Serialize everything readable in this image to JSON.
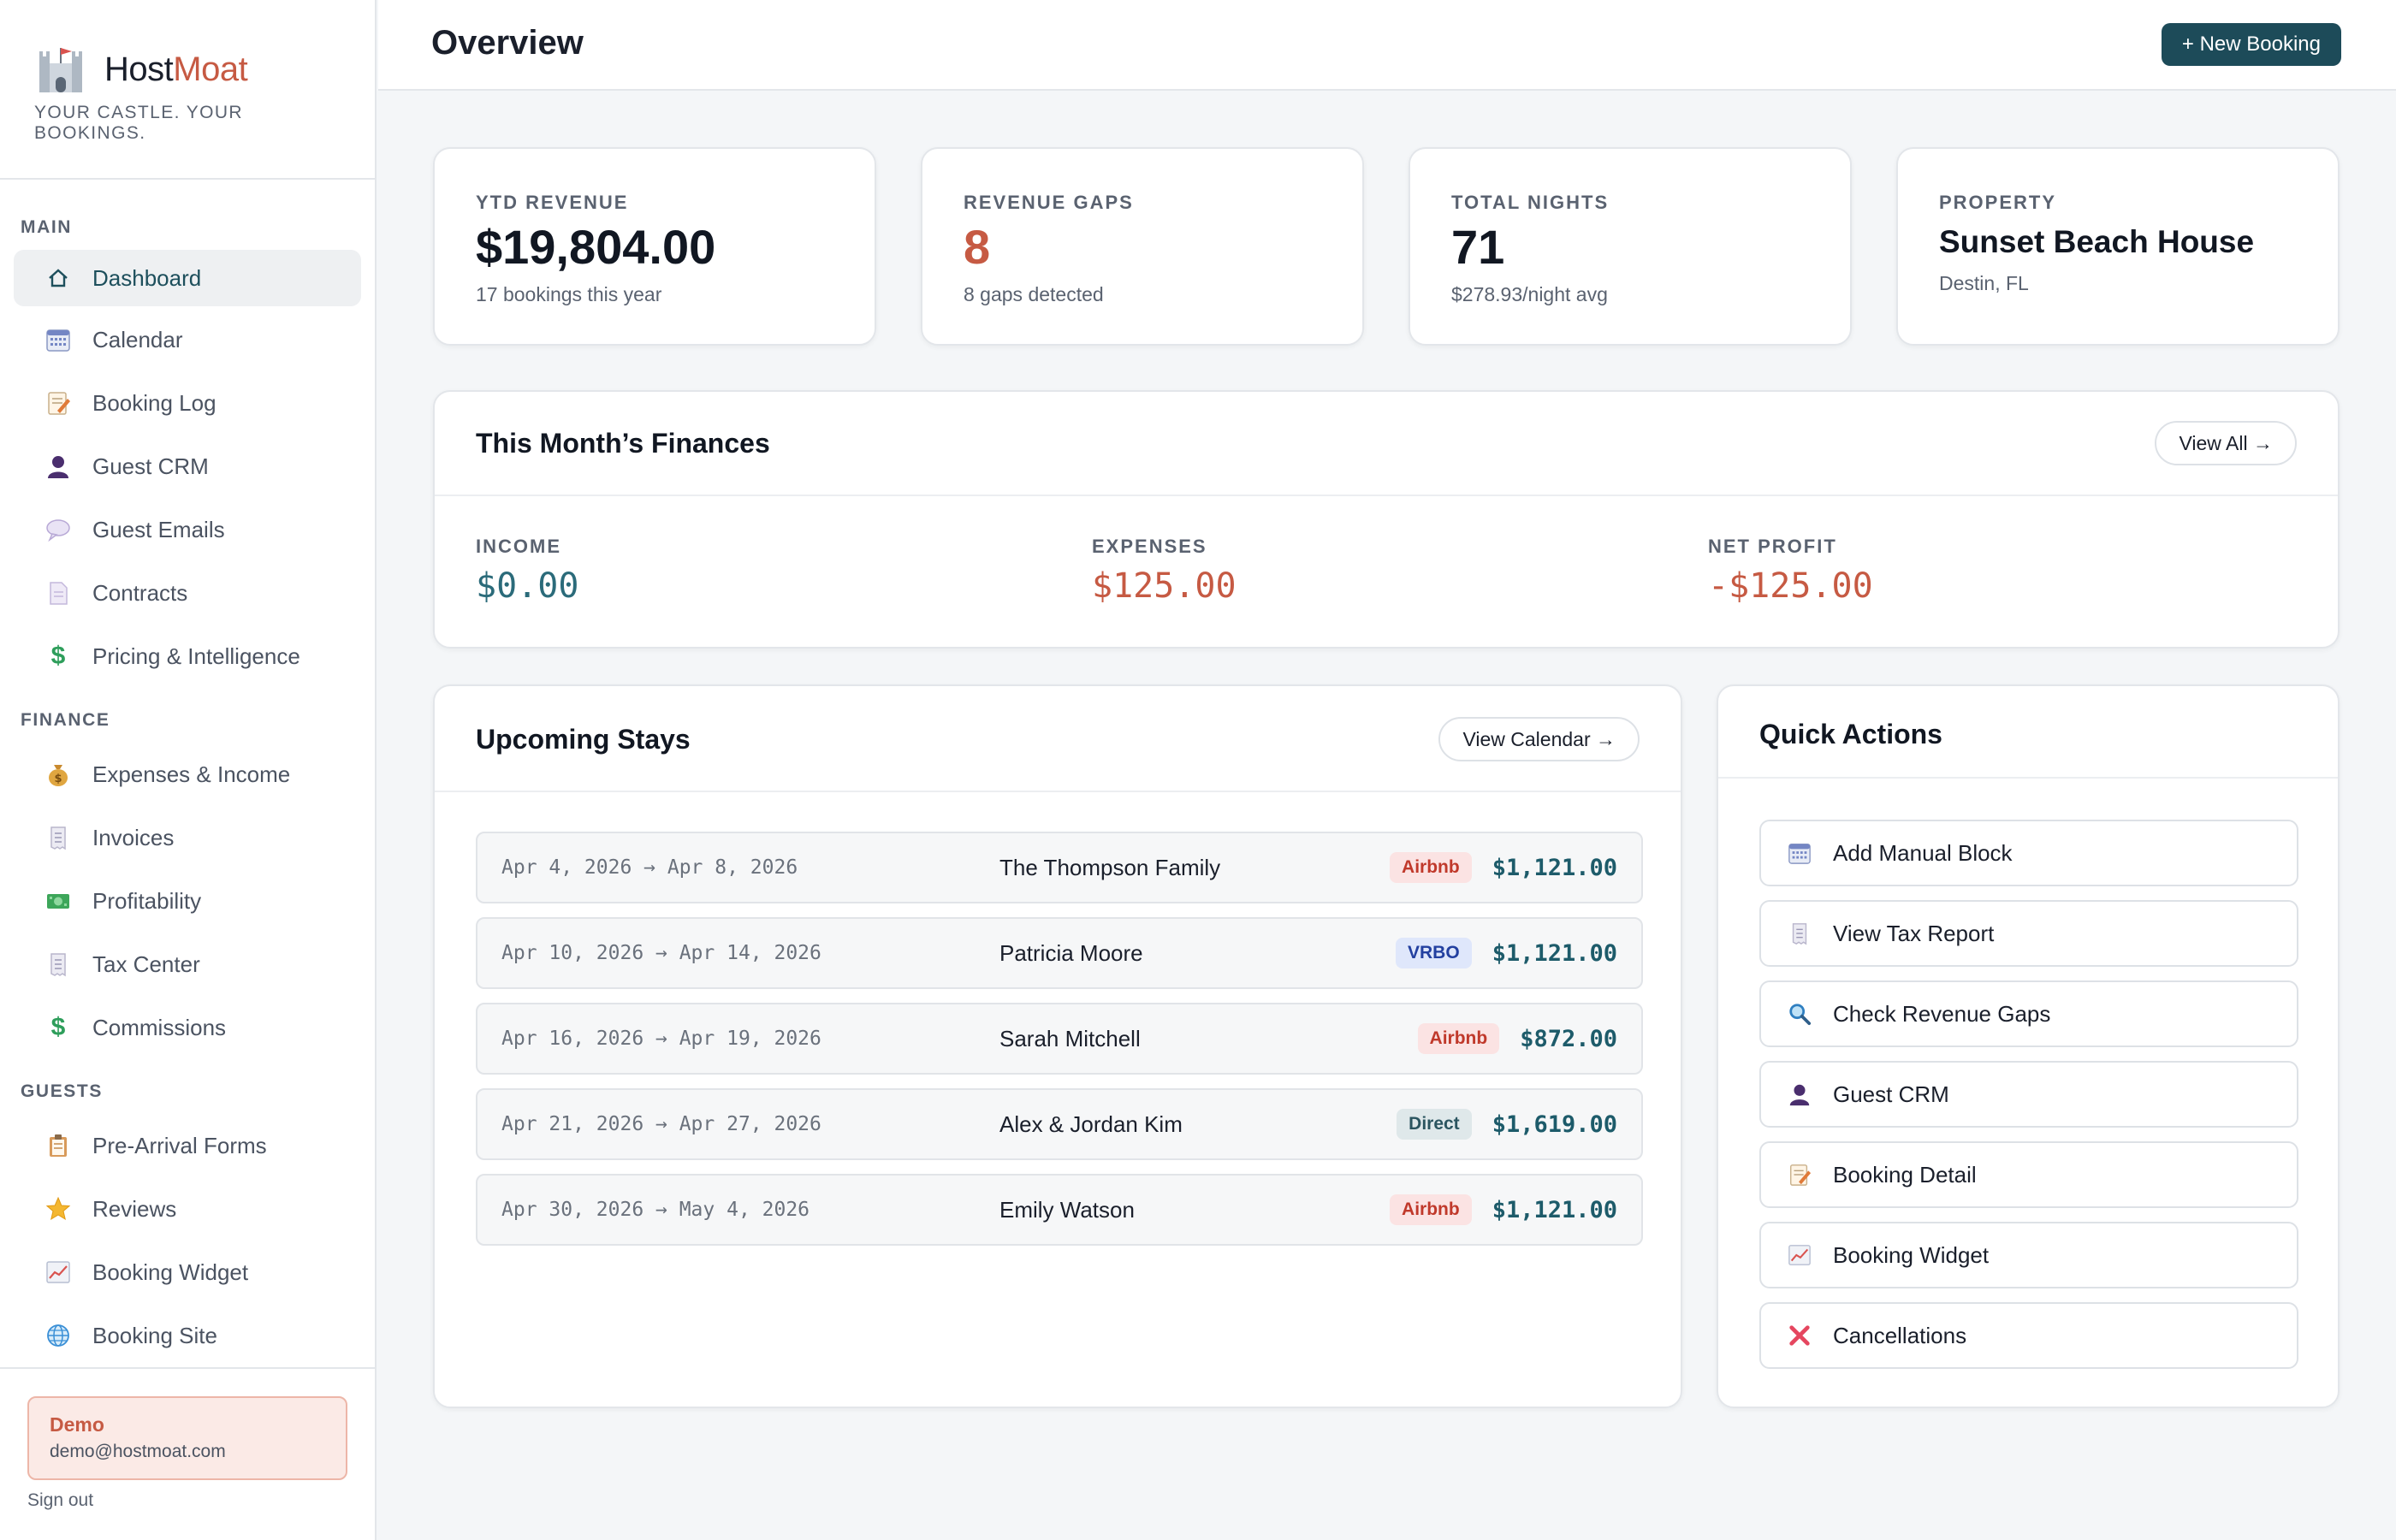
{
  "brand": {
    "name_part1": "Host",
    "name_part2": "Moat",
    "tagline": "YOUR CASTLE. YOUR BOOKINGS.",
    "accent_color": "#c65a43"
  },
  "sidebar": {
    "sections": [
      {
        "title": "MAIN",
        "items": [
          {
            "label": "Dashboard",
            "icon": "home-icon",
            "active": true
          },
          {
            "label": "Calendar",
            "icon": "calendar-icon"
          },
          {
            "label": "Booking Log",
            "icon": "memo-icon"
          },
          {
            "label": "Guest CRM",
            "icon": "person-icon"
          },
          {
            "label": "Guest Emails",
            "icon": "speech-bubble-icon"
          },
          {
            "label": "Contracts",
            "icon": "document-icon"
          },
          {
            "label": "Pricing & Intelligence",
            "icon": "dollar-icon"
          }
        ]
      },
      {
        "title": "FINANCE",
        "items": [
          {
            "label": "Expenses & Income",
            "icon": "money-bag-icon"
          },
          {
            "label": "Invoices",
            "icon": "receipt-icon"
          },
          {
            "label": "Profitability",
            "icon": "banknote-icon"
          },
          {
            "label": "Tax Center",
            "icon": "receipt-icon"
          },
          {
            "label": "Commissions",
            "icon": "dollar-icon"
          }
        ]
      },
      {
        "title": "GUESTS",
        "items": [
          {
            "label": "Pre-Arrival Forms",
            "icon": "clipboard-icon"
          },
          {
            "label": "Reviews",
            "icon": "star-icon"
          },
          {
            "label": "Booking Widget",
            "icon": "chart-icon"
          },
          {
            "label": "Booking Site",
            "icon": "globe-icon"
          }
        ]
      }
    ]
  },
  "user": {
    "name": "Demo",
    "email": "demo@hostmoat.com",
    "signout_label": "Sign out"
  },
  "header": {
    "title": "Overview",
    "new_booking_label": "+ New Booking",
    "button_color": "#1d4b59"
  },
  "stats": [
    {
      "label": "YTD REVENUE",
      "value": "$19,804.00",
      "sub": "17 bookings this year"
    },
    {
      "label": "REVENUE GAPS",
      "value": "8",
      "sub": "8 gaps detected",
      "value_color": "#c65a43"
    },
    {
      "label": "TOTAL NIGHTS",
      "value": "71",
      "sub": "$278.93/night avg"
    },
    {
      "label": "PROPERTY",
      "value": "Sunset Beach House",
      "sub": "Destin, FL"
    }
  ],
  "finances": {
    "title": "This Month’s Finances",
    "view_all_label": "View All →",
    "income_label": "INCOME",
    "income_value": "$0.00",
    "expenses_label": "EXPENSES",
    "expenses_value": "$125.00",
    "net_label": "NET PROFIT",
    "net_value": "-$125.00"
  },
  "upcoming": {
    "title": "Upcoming Stays",
    "view_calendar_label": "View Calendar →",
    "rows": [
      {
        "dates": "Apr 4, 2026 → Apr 8, 2026",
        "guest": "The Thompson Family",
        "source": "Airbnb",
        "amount": "$1,121.00"
      },
      {
        "dates": "Apr 10, 2026 → Apr 14, 2026",
        "guest": "Patricia Moore",
        "source": "VRBO",
        "amount": "$1,121.00"
      },
      {
        "dates": "Apr 16, 2026 → Apr 19, 2026",
        "guest": "Sarah Mitchell",
        "source": "Airbnb",
        "amount": "$872.00"
      },
      {
        "dates": "Apr 21, 2026 → Apr 27, 2026",
        "guest": "Alex & Jordan Kim",
        "source": "Direct",
        "amount": "$1,619.00"
      },
      {
        "dates": "Apr 30, 2026 → May 4, 2026",
        "guest": "Emily Watson",
        "source": "Airbnb",
        "amount": "$1,121.00"
      }
    ]
  },
  "quick_actions": {
    "title": "Quick Actions",
    "items": [
      {
        "label": "Add Manual Block",
        "icon": "calendar-icon"
      },
      {
        "label": "View Tax Report",
        "icon": "receipt-icon"
      },
      {
        "label": "Check Revenue Gaps",
        "icon": "magnifier-icon"
      },
      {
        "label": "Guest CRM",
        "icon": "person-icon"
      },
      {
        "label": "Booking Detail",
        "icon": "memo-icon"
      },
      {
        "label": "Booking Widget",
        "icon": "chart-icon"
      },
      {
        "label": "Cancellations",
        "icon": "cross-icon"
      }
    ]
  },
  "colors": {
    "income": "#2b6b7a",
    "expense": "#c65a43",
    "airbnb_bg": "#fbe3e3",
    "airbnb_fg": "#c0392b",
    "vrbo_bg": "#dfe7fb",
    "vrbo_fg": "#2340a0",
    "direct_bg": "#dfe8ea",
    "direct_fg": "#2b5560"
  }
}
